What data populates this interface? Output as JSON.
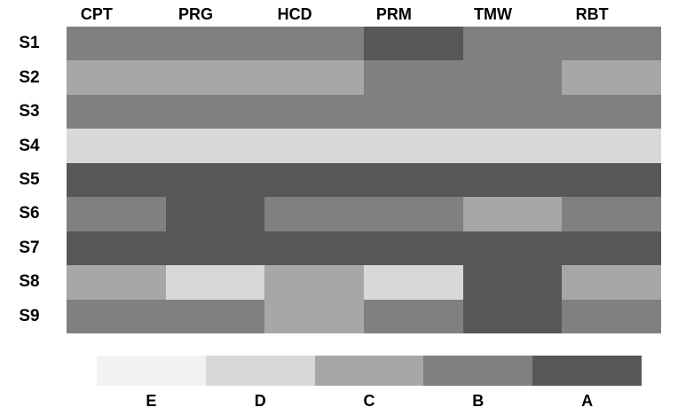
{
  "chart_data": {
    "type": "heatmap",
    "title": "",
    "xlabel": "",
    "ylabel": "",
    "columns": [
      "CPT",
      "PRG",
      "HCD",
      "PRM",
      "TMW",
      "RBT"
    ],
    "rows": [
      "S1",
      "S2",
      "S3",
      "S4",
      "S5",
      "S6",
      "S7",
      "S8",
      "S9"
    ],
    "grades": [
      [
        "B",
        "B",
        "B",
        "A",
        "B",
        "B"
      ],
      [
        "C",
        "C",
        "C",
        "B",
        "B",
        "C"
      ],
      [
        "B",
        "B",
        "B",
        "B",
        "B",
        "B"
      ],
      [
        "D",
        "D",
        "D",
        "D",
        "D",
        "D"
      ],
      [
        "A",
        "A",
        "A",
        "A",
        "A",
        "A"
      ],
      [
        "B",
        "A",
        "B",
        "B",
        "C",
        "B"
      ],
      [
        "A",
        "A",
        "A",
        "A",
        "A",
        "A"
      ],
      [
        "C",
        "D",
        "C",
        "D",
        "A",
        "C"
      ],
      [
        "B",
        "B",
        "C",
        "B",
        "A",
        "B"
      ]
    ],
    "palette": {
      "E": "#f2f2f2",
      "D": "#d8d8d8",
      "C": "#a7a7a7",
      "B": "#808080",
      "A": "#575757"
    },
    "legend": {
      "labels": [
        "E",
        "D",
        "C",
        "B",
        "A"
      ],
      "position": "bottom"
    },
    "grid": false
  }
}
